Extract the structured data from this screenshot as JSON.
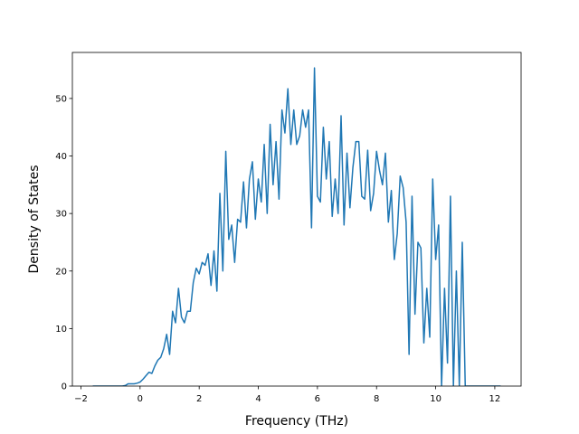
{
  "chart_data": {
    "type": "line",
    "xlabel": "Frequency (THz)",
    "ylabel": "Density of States",
    "color": "#1f77b4",
    "x": [
      -1.6,
      -1.5,
      -1.4,
      -1.3,
      -1.2,
      -1.1,
      -1.0,
      -0.9,
      -0.8,
      -0.7,
      -0.6,
      -0.5,
      -0.4,
      -0.3,
      -0.2,
      -0.1,
      0,
      0.1,
      0.2,
      0.3,
      0.4,
      0.5,
      0.6,
      0.7,
      0.8,
      0.9,
      1.0,
      1.1,
      1.2,
      1.3,
      1.4,
      1.5,
      1.6,
      1.7,
      1.8,
      1.9,
      2.0,
      2.1,
      2.2,
      2.3,
      2.4,
      2.5,
      2.6,
      2.7,
      2.8,
      2.9,
      3.0,
      3.1,
      3.2,
      3.3,
      3.4,
      3.5,
      3.6,
      3.7,
      3.8,
      3.9,
      4.0,
      4.1,
      4.2,
      4.3,
      4.4,
      4.5,
      4.6,
      4.7,
      4.8,
      4.9,
      5.0,
      5.1,
      5.2,
      5.3,
      5.4,
      5.5,
      5.6,
      5.7,
      5.8,
      5.9,
      6.0,
      6.1,
      6.2,
      6.3,
      6.4,
      6.5,
      6.6,
      6.7,
      6.8,
      6.9,
      7.0,
      7.1,
      7.2,
      7.3,
      7.4,
      7.5,
      7.6,
      7.7,
      7.8,
      7.9,
      8.0,
      8.1,
      8.2,
      8.3,
      8.4,
      8.5,
      8.6,
      8.7,
      8.8,
      8.9,
      9.0,
      9.1,
      9.2,
      9.3,
      9.4,
      9.5,
      9.6,
      9.7,
      9.8,
      9.9,
      10.0,
      10.1,
      10.2,
      10.3,
      10.4,
      10.5,
      10.6,
      10.7,
      10.8,
      10.9,
      11.0,
      11.1,
      11.2,
      11.3,
      11.4,
      11.5,
      11.6,
      11.7,
      11.8,
      11.9,
      12.0,
      12.1,
      12.2
    ],
    "values": [
      0,
      0,
      0,
      0,
      0,
      0,
      0,
      0,
      0,
      0,
      0,
      0.1,
      0.4,
      0.4,
      0.4,
      0.5,
      0.7,
      1.2,
      1.8,
      2.4,
      2.2,
      3.5,
      4.5,
      5,
      6.5,
      9,
      5.5,
      13,
      11,
      17,
      12,
      11,
      13,
      13,
      18,
      20.5,
      19.5,
      21.5,
      21,
      23,
      17.5,
      23.5,
      16.5,
      33.5,
      20,
      40.8,
      25.5,
      28,
      21.5,
      29,
      28.5,
      35.5,
      27.5,
      36,
      39,
      29,
      36,
      32,
      42,
      30,
      45.5,
      35,
      42.5,
      32.5,
      48,
      44,
      51.7,
      42,
      48,
      42,
      43.5,
      48,
      45,
      48,
      27.5,
      55.3,
      33,
      32,
      45,
      36,
      42.5,
      29.5,
      36,
      30,
      47,
      28,
      40.5,
      31,
      38,
      42.5,
      42.5,
      33,
      32.5,
      41,
      30.5,
      33.5,
      40.8,
      37.5,
      35,
      40.5,
      28.5,
      34,
      22,
      26.5,
      36.5,
      34.5,
      28.5,
      5.5,
      33,
      12.5,
      25,
      24,
      7.5,
      17,
      8.5,
      36,
      22,
      28,
      0,
      17,
      4,
      33,
      0,
      20,
      0,
      25,
      0,
      0,
      0,
      0,
      0,
      0,
      0,
      0,
      0,
      0,
      0,
      0,
      0
    ],
    "xlim": [
      -2.29,
      12.89
    ],
    "ylim": [
      0,
      58
    ],
    "xticks": [
      {
        "value": -2,
        "label": "−2"
      },
      0,
      2,
      4,
      6,
      8,
      10,
      12
    ],
    "yticks": [
      0,
      10,
      20,
      30,
      40,
      50
    ]
  }
}
